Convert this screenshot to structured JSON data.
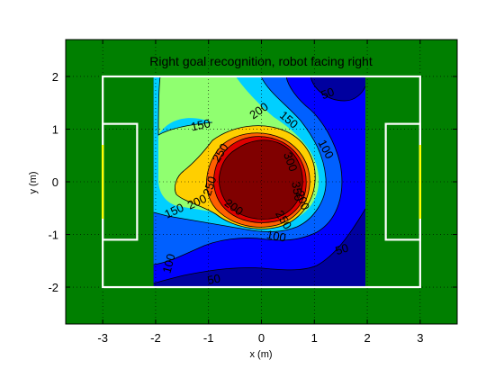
{
  "chart_data": {
    "type": "contour",
    "title": "Right goal recognition, robot facing right",
    "xlabel": "x (m)",
    "ylabel": "y (m)",
    "xlim": [
      -3.7,
      3.7
    ],
    "ylim": [
      -2.7,
      2.7
    ],
    "xticks": [
      -3,
      -2,
      -1,
      0,
      1,
      2,
      3
    ],
    "yticks": [
      -2,
      -1,
      0,
      1,
      2
    ],
    "grid": true,
    "colorbar": false,
    "data_region": {
      "x": [
        -2,
        2
      ],
      "y": [
        -2,
        2
      ]
    },
    "field": {
      "outer_lines": {
        "x": [
          -3,
          3
        ],
        "y": [
          -2,
          2
        ]
      },
      "left_penalty_box": {
        "x": [
          -3,
          -2.35
        ],
        "y": [
          -1.1,
          1.1
        ]
      },
      "right_penalty_box": {
        "x": [
          2.35,
          3
        ],
        "y": [
          -1.1,
          1.1
        ]
      },
      "goal_marks": {
        "x": [
          -3,
          3
        ],
        "y": [
          -0.7,
          0.7
        ]
      }
    },
    "levels": [
      {
        "value": 0,
        "color": "#00009f"
      },
      {
        "value": 50,
        "color": "#0000ff"
      },
      {
        "value": 100,
        "color": "#0060ff"
      },
      {
        "value": 150,
        "color": "#00cfff"
      },
      {
        "value": 200,
        "color": "#90ff70"
      },
      {
        "value": 250,
        "color": "#ffcf00"
      },
      {
        "value": 300,
        "color": "#ff6000"
      },
      {
        "value": 350,
        "color": "#df0000"
      },
      {
        "value": 400,
        "color": "#800000"
      }
    ],
    "contour_labels": [
      {
        "text": "50",
        "x": 1.25,
        "y": 1.68,
        "rotate": -20
      },
      {
        "text": "200",
        "x": -0.05,
        "y": 1.35,
        "rotate": -35
      },
      {
        "text": "150",
        "x": 0.52,
        "y": 1.18,
        "rotate": 40
      },
      {
        "text": "150",
        "x": -1.15,
        "y": 1.08,
        "rotate": -12
      },
      {
        "text": "250",
        "x": -0.78,
        "y": 0.55,
        "rotate": -58
      },
      {
        "text": "100",
        "x": 1.22,
        "y": 0.62,
        "rotate": 62
      },
      {
        "text": "300",
        "x": 0.55,
        "y": 0.38,
        "rotate": 70
      },
      {
        "text": "250",
        "x": -0.98,
        "y": -0.08,
        "rotate": -72
      },
      {
        "text": "200",
        "x": -1.22,
        "y": -0.38,
        "rotate": -25
      },
      {
        "text": "200",
        "x": -0.52,
        "y": -0.48,
        "rotate": 35
      },
      {
        "text": "150",
        "x": -1.65,
        "y": -0.55,
        "rotate": -25
      },
      {
        "text": "350",
        "x": 0.68,
        "y": -0.18,
        "rotate": 80
      },
      {
        "text": "250",
        "x": 0.42,
        "y": -0.72,
        "rotate": 58
      },
      {
        "text": "200",
        "x": 0.78,
        "y": -0.35,
        "rotate": 70
      },
      {
        "text": "100",
        "x": 0.28,
        "y": -1.03,
        "rotate": 10
      },
      {
        "text": "50",
        "x": 1.52,
        "y": -1.28,
        "rotate": -18
      },
      {
        "text": "100",
        "x": -1.75,
        "y": -1.55,
        "rotate": -75
      },
      {
        "text": "50",
        "x": -0.9,
        "y": -1.85,
        "rotate": -10
      }
    ]
  }
}
